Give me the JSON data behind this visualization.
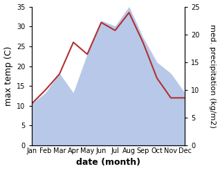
{
  "months": [
    "Jan",
    "Feb",
    "Mar",
    "Apr",
    "May",
    "Jun",
    "Jul",
    "Aug",
    "Sep",
    "Oct",
    "Nov",
    "Dec"
  ],
  "max_temp": [
    10.5,
    14.0,
    18.0,
    26.0,
    23.0,
    31.0,
    29.0,
    33.5,
    26.0,
    17.0,
    12.0,
    12.0
  ],
  "precipitation": [
    7.5,
    9.5,
    13.0,
    9.5,
    16.5,
    22.5,
    21.5,
    25.0,
    19.5,
    15.0,
    13.0,
    9.5
  ],
  "temp_color": "#b03030",
  "precip_color": "#b8c8e8",
  "temp_ylim": [
    0,
    35
  ],
  "precip_ylim": [
    0,
    25
  ],
  "temp_yticks": [
    0,
    5,
    10,
    15,
    20,
    25,
    30,
    35
  ],
  "precip_yticks": [
    0,
    5,
    10,
    15,
    20,
    25
  ],
  "xlabel": "date (month)",
  "ylabel_left": "max temp (C)",
  "ylabel_right": "med. precipitation (kg/m2)",
  "background_color": "#ffffff",
  "xlabel_fontsize": 9,
  "ylabel_fontsize": 9,
  "tick_fontsize": 7,
  "linewidth": 1.5,
  "temp_scale": 35,
  "precip_scale": 25
}
